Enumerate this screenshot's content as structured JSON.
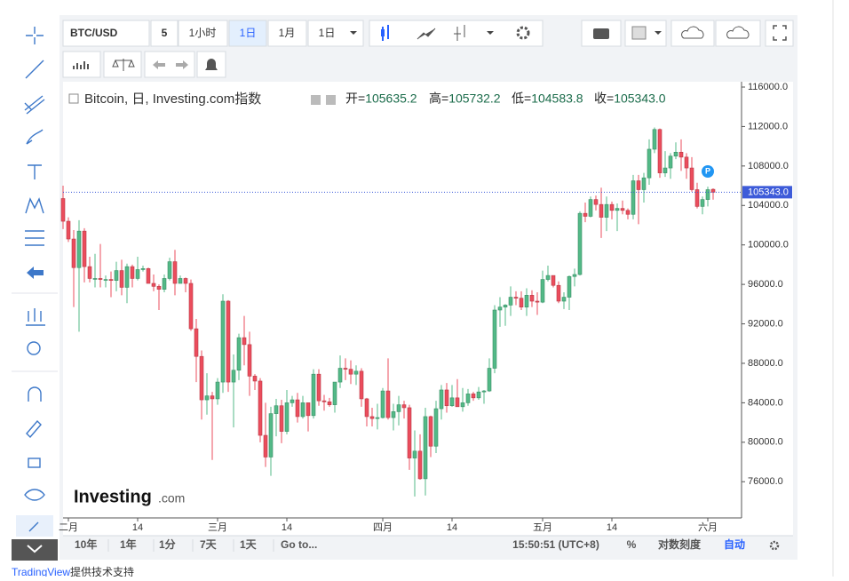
{
  "toolbar": {
    "symbol": "BTC/USD",
    "interval": "5",
    "buttons": [
      "1小时",
      "1日",
      "1月",
      "1日"
    ]
  },
  "chart_data": {
    "type": "candlestick",
    "title": "Bitcoin, 日, Investing.com指数",
    "ohlc_names": [
      "开=",
      "高=",
      "低=",
      "收="
    ],
    "ohlc_labels": [
      "105635.2",
      "105732.2",
      "104583.8",
      "105343.0"
    ],
    "up_color": "#53b987",
    "down_color": "#eb4d5c",
    "badge": "P",
    "ylim": [
      72330,
      116540
    ],
    "yticks": [
      {
        "value": 76000,
        "label": "76000.0"
      },
      {
        "value": 80000,
        "label": "80000.0"
      },
      {
        "value": 84000,
        "label": "84000.0"
      },
      {
        "value": 88000,
        "label": "88000.0"
      },
      {
        "value": 92000,
        "label": "92000.0"
      },
      {
        "value": 96000,
        "label": "96000.0"
      },
      {
        "value": 100000,
        "label": "100000.0"
      },
      {
        "value": 104000,
        "label": "104000.0"
      },
      {
        "value": 108000,
        "label": "108000.0"
      },
      {
        "value": 112000,
        "label": "112000.0"
      },
      {
        "value": 116000,
        "label": "116000.0"
      }
    ],
    "xticks": [
      {
        "value": 1,
        "label": "二月"
      },
      {
        "value": 14,
        "label": "14"
      },
      {
        "value": 29,
        "label": "三月"
      },
      {
        "value": 42,
        "label": "14"
      },
      {
        "value": 60,
        "label": "四月"
      },
      {
        "value": 73,
        "label": "14"
      },
      {
        "value": 90,
        "label": "五月"
      },
      {
        "value": 103,
        "label": "14"
      },
      {
        "value": 121,
        "label": "六月"
      }
    ],
    "candles": [
      [
        104700,
        106000,
        101600,
        102400
      ],
      [
        102400,
        102800,
        100300,
        100600
      ],
      [
        100600,
        101500,
        93700,
        97700
      ],
      [
        97700,
        102500,
        91200,
        101400
      ],
      [
        101400,
        101700,
        96200,
        97800
      ],
      [
        97800,
        98800,
        96200,
        96600
      ],
      [
        96600,
        99100,
        95700,
        96600
      ],
      [
        96600,
        100100,
        95700,
        96500
      ],
      [
        96500,
        96900,
        95700,
        96500
      ],
      [
        96500,
        97300,
        94700,
        96400
      ],
      [
        96400,
        98300,
        95300,
        97400
      ],
      [
        97400,
        98500,
        94900,
        95700
      ],
      [
        95700,
        98100,
        94100,
        97800
      ],
      [
        97800,
        98000,
        95700,
        96600
      ],
      [
        96600,
        98800,
        96400,
        97500
      ],
      [
        97500,
        97900,
        97300,
        97600
      ],
      [
        97600,
        97700,
        96100,
        96100
      ],
      [
        96100,
        97000,
        95300,
        95800
      ],
      [
        95800,
        96000,
        93400,
        95500
      ],
      [
        95500,
        97000,
        95200,
        96600
      ],
      [
        96600,
        98700,
        96400,
        98300
      ],
      [
        98300,
        99500,
        94900,
        96100
      ],
      [
        96100,
        96900,
        96100,
        96600
      ],
      [
        96600,
        96700,
        95200,
        96100
      ],
      [
        96100,
        96500,
        91300,
        91500
      ],
      [
        91500,
        92500,
        86100,
        88700
      ],
      [
        88700,
        89300,
        82300,
        84300
      ],
      [
        84300,
        87000,
        82800,
        84700
      ],
      [
        84700,
        85100,
        78200,
        84400
      ],
      [
        84400,
        86500,
        83800,
        86100
      ],
      [
        86100,
        95000,
        85000,
        94300
      ],
      [
        94300,
        94400,
        85100,
        86100
      ],
      [
        86100,
        88900,
        81500,
        87300
      ],
      [
        87300,
        91000,
        86300,
        90600
      ],
      [
        90600,
        92800,
        87800,
        89900
      ],
      [
        89900,
        91200,
        84700,
        86700
      ],
      [
        86700,
        86900,
        85300,
        86200
      ],
      [
        86200,
        86500,
        80000,
        80700
      ],
      [
        80700,
        84000,
        77500,
        78500
      ],
      [
        78500,
        83600,
        76600,
        82900
      ],
      [
        82900,
        84400,
        80600,
        83700
      ],
      [
        83700,
        84300,
        79900,
        81100
      ],
      [
        81100,
        85300,
        80800,
        84000
      ],
      [
        84000,
        84700,
        83600,
        84300
      ],
      [
        84300,
        85000,
        82000,
        82600
      ],
      [
        82600,
        84700,
        82400,
        84000
      ],
      [
        84000,
        84000,
        81100,
        82700
      ],
      [
        82700,
        87400,
        82400,
        86900
      ],
      [
        86900,
        87400,
        83700,
        84200
      ],
      [
        84200,
        84800,
        83200,
        84100
      ],
      [
        84100,
        84500,
        83600,
        83800
      ],
      [
        83800,
        86100,
        83000,
        86100
      ],
      [
        86100,
        88800,
        85500,
        87500
      ],
      [
        87500,
        88500,
        86300,
        87400
      ],
      [
        87400,
        88300,
        85900,
        86900
      ],
      [
        86900,
        87800,
        85800,
        87200
      ],
      [
        87200,
        87500,
        83600,
        84400
      ],
      [
        84400,
        84500,
        81600,
        82600
      ],
      [
        82600,
        83500,
        81600,
        82400
      ],
      [
        82400,
        83900,
        81300,
        82500
      ],
      [
        82500,
        85500,
        82400,
        85200
      ],
      [
        85200,
        88500,
        82300,
        82500
      ],
      [
        82500,
        83900,
        81200,
        83100
      ],
      [
        83100,
        84700,
        81700,
        83800
      ],
      [
        83800,
        84200,
        82400,
        83500
      ],
      [
        83500,
        83800,
        77200,
        78400
      ],
      [
        78400,
        81200,
        74500,
        79100
      ],
      [
        79100,
        80800,
        76200,
        76300
      ],
      [
        76300,
        83500,
        74600,
        82600
      ],
      [
        82600,
        82700,
        78500,
        79600
      ],
      [
        79600,
        84200,
        78900,
        83400
      ],
      [
        83400,
        85800,
        82300,
        85300
      ],
      [
        85300,
        86000,
        83000,
        83700
      ],
      [
        83700,
        85800,
        83600,
        84500
      ],
      [
        84500,
        86400,
        83600,
        83600
      ],
      [
        83600,
        85500,
        83100,
        84000
      ],
      [
        84000,
        85400,
        83700,
        84900
      ],
      [
        84900,
        85100,
        84200,
        84500
      ],
      [
        84500,
        85600,
        84300,
        85100
      ],
      [
        85100,
        85300,
        83900,
        85200
      ],
      [
        85200,
        88500,
        85100,
        87500
      ],
      [
        87500,
        93900,
        87000,
        93400
      ],
      [
        93400,
        94700,
        91700,
        93700
      ],
      [
        93700,
        94000,
        91800,
        93900
      ],
      [
        93900,
        95800,
        92800,
        94700
      ],
      [
        94700,
        95300,
        93900,
        94600
      ],
      [
        94600,
        95300,
        93400,
        93700
      ],
      [
        93700,
        95600,
        92800,
        94900
      ],
      [
        94900,
        95400,
        93700,
        94300
      ],
      [
        94300,
        95200,
        92900,
        94200
      ],
      [
        94200,
        97400,
        94100,
        96500
      ],
      [
        96500,
        97900,
        96300,
        96900
      ],
      [
        96900,
        96900,
        95700,
        95900
      ],
      [
        95900,
        96300,
        94100,
        94300
      ],
      [
        94300,
        95200,
        93500,
        94700
      ],
      [
        94700,
        96900,
        93400,
        96800
      ],
      [
        96800,
        97600,
        95800,
        97000
      ],
      [
        97000,
        103400,
        96900,
        103200
      ],
      [
        103200,
        104300,
        102300,
        102900
      ],
      [
        102900,
        104900,
        102800,
        104600
      ],
      [
        104600,
        105000,
        103500,
        104100
      ],
      [
        104100,
        105800,
        100700,
        102800
      ],
      [
        102800,
        104900,
        101400,
        104100
      ],
      [
        104100,
        104400,
        102600,
        103500
      ],
      [
        103500,
        104200,
        101400,
        103700
      ],
      [
        103700,
        104500,
        103100,
        103500
      ],
      [
        103500,
        103700,
        102600,
        103100
      ],
      [
        103100,
        107100,
        102600,
        106500
      ],
      [
        106500,
        107100,
        102100,
        105600
      ],
      [
        105600,
        107300,
        104300,
        106800
      ],
      [
        106800,
        110700,
        106100,
        109700
      ],
      [
        109700,
        111900,
        109300,
        111700
      ],
      [
        111700,
        111800,
        106800,
        107300
      ],
      [
        107300,
        109500,
        106900,
        107800
      ],
      [
        107800,
        109300,
        106700,
        109000
      ],
      [
        109000,
        110400,
        108700,
        109400
      ],
      [
        109400,
        110700,
        107500,
        108900
      ],
      [
        108900,
        109300,
        106700,
        107800
      ],
      [
        107800,
        108900,
        105400,
        105600
      ],
      [
        105600,
        106300,
        103700,
        103900
      ],
      [
        103900,
        104900,
        103100,
        104600
      ],
      [
        104600,
        105900,
        103900,
        105600
      ],
      [
        105635.2,
        105732.2,
        104583.8,
        105343.0
      ]
    ]
  },
  "logo": {
    "name": "Investing",
    "suffix": ".com"
  },
  "bottom_bar": {
    "ranges": [
      "10年",
      "1年",
      "1分",
      "7天",
      "1天"
    ],
    "goto": "Go to...",
    "time": "15:50:51 (UTC+8)",
    "percent": "%",
    "log": "对数刻度",
    "auto": "自动"
  },
  "footer": {
    "link": "TradingView",
    "text": "提供技术支持"
  }
}
